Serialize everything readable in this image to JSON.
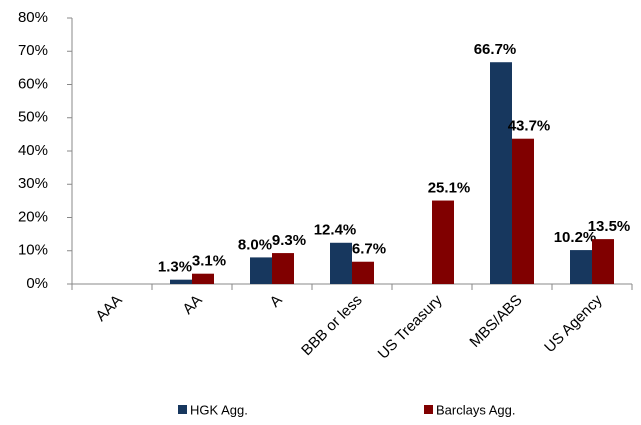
{
  "chart_data": {
    "type": "bar",
    "categories": [
      "AAA",
      "AA",
      "A",
      "BBB or less",
      "US Treasury",
      "MBS/ABS",
      "US Agency"
    ],
    "series": [
      {
        "name": "HGK Agg.",
        "color": "#17375e",
        "values": [
          null,
          1.3,
          8.0,
          12.4,
          null,
          66.7,
          10.2
        ],
        "value_labels": [
          null,
          "1.3%",
          "8.0%",
          "12.4%",
          null,
          "66.7%",
          "10.2%"
        ]
      },
      {
        "name": "Barclays Agg.",
        "color": "#800000",
        "values": [
          null,
          3.1,
          9.3,
          6.7,
          25.1,
          43.7,
          13.5
        ],
        "value_labels": [
          null,
          "3.1%",
          "9.3%",
          "6.7%",
          "25.1%",
          "43.7%",
          "13.5%"
        ]
      }
    ],
    "ylim": [
      0,
      80
    ],
    "yticks": [
      {
        "value": 0,
        "label": "0%"
      },
      {
        "value": 10,
        "label": "10%"
      },
      {
        "value": 20,
        "label": "20%"
      },
      {
        "value": 30,
        "label": "30%"
      },
      {
        "value": 40,
        "label": "40%"
      },
      {
        "value": 50,
        "label": "50%"
      },
      {
        "value": 60,
        "label": "60%"
      },
      {
        "value": 70,
        "label": "70%"
      },
      {
        "value": 80,
        "label": "80%"
      }
    ],
    "grid": false,
    "legend": "bottom"
  }
}
